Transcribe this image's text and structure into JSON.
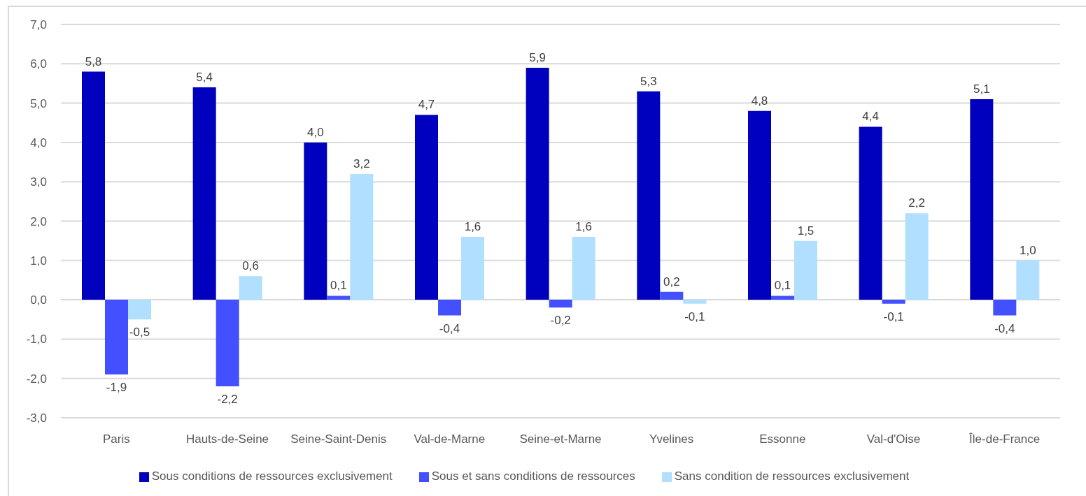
{
  "chart_data": {
    "type": "bar",
    "categories": [
      "Paris",
      "Hauts-de-Seine",
      "Seine-Saint-Denis",
      "Val-de-Marne",
      "Seine-et-Marne",
      "Yvelines",
      "Essonne",
      "Val-d'Oise",
      "Île-de-France"
    ],
    "series": [
      {
        "name": "Sous conditions de ressources exclusivement",
        "color": "#0000bf",
        "values": [
          5.8,
          5.4,
          4.0,
          4.7,
          5.9,
          5.3,
          4.8,
          4.4,
          5.1
        ],
        "value_labels": [
          "5,8",
          "5,4",
          "4,0",
          "4,7",
          "5,9",
          "5,3",
          "4,8",
          "4,4",
          "5,1"
        ]
      },
      {
        "name": "Sous et sans conditions de ressources",
        "color": "#4350ff",
        "values": [
          -1.9,
          -2.2,
          0.1,
          -0.4,
          -0.2,
          0.2,
          0.1,
          -0.1,
          -0.4
        ],
        "value_labels": [
          "-1,9",
          "-2,2",
          "0,1",
          "-0,4",
          "-0,2",
          "0,2",
          "0,1",
          "-0,1",
          "-0,4"
        ]
      },
      {
        "name": "Sans condition de ressources exclusivement",
        "color": "#b0dfff",
        "values": [
          -0.5,
          0.6,
          3.2,
          1.6,
          1.6,
          -0.1,
          1.5,
          2.2,
          1.0
        ],
        "value_labels": [
          "-0,5",
          "0,6",
          "3,2",
          "1,6",
          "1,6",
          "-0,1",
          "1,5",
          "2,2",
          "1,0"
        ]
      }
    ],
    "ylim": [
      -3,
      7
    ],
    "yticks": [
      {
        "value": -3,
        "label": "-3,0"
      },
      {
        "value": -2,
        "label": "-2,0"
      },
      {
        "value": -1,
        "label": "-1,0"
      },
      {
        "value": 0,
        "label": "0,0"
      },
      {
        "value": 1,
        "label": "1,0"
      },
      {
        "value": 2,
        "label": "2,0"
      },
      {
        "value": 3,
        "label": "3,0"
      },
      {
        "value": 4,
        "label": "4,0"
      },
      {
        "value": 5,
        "label": "5,0"
      },
      {
        "value": 6,
        "label": "6,0"
      },
      {
        "value": 7,
        "label": "7,0"
      }
    ],
    "grid": "y",
    "legend": "bottom"
  }
}
